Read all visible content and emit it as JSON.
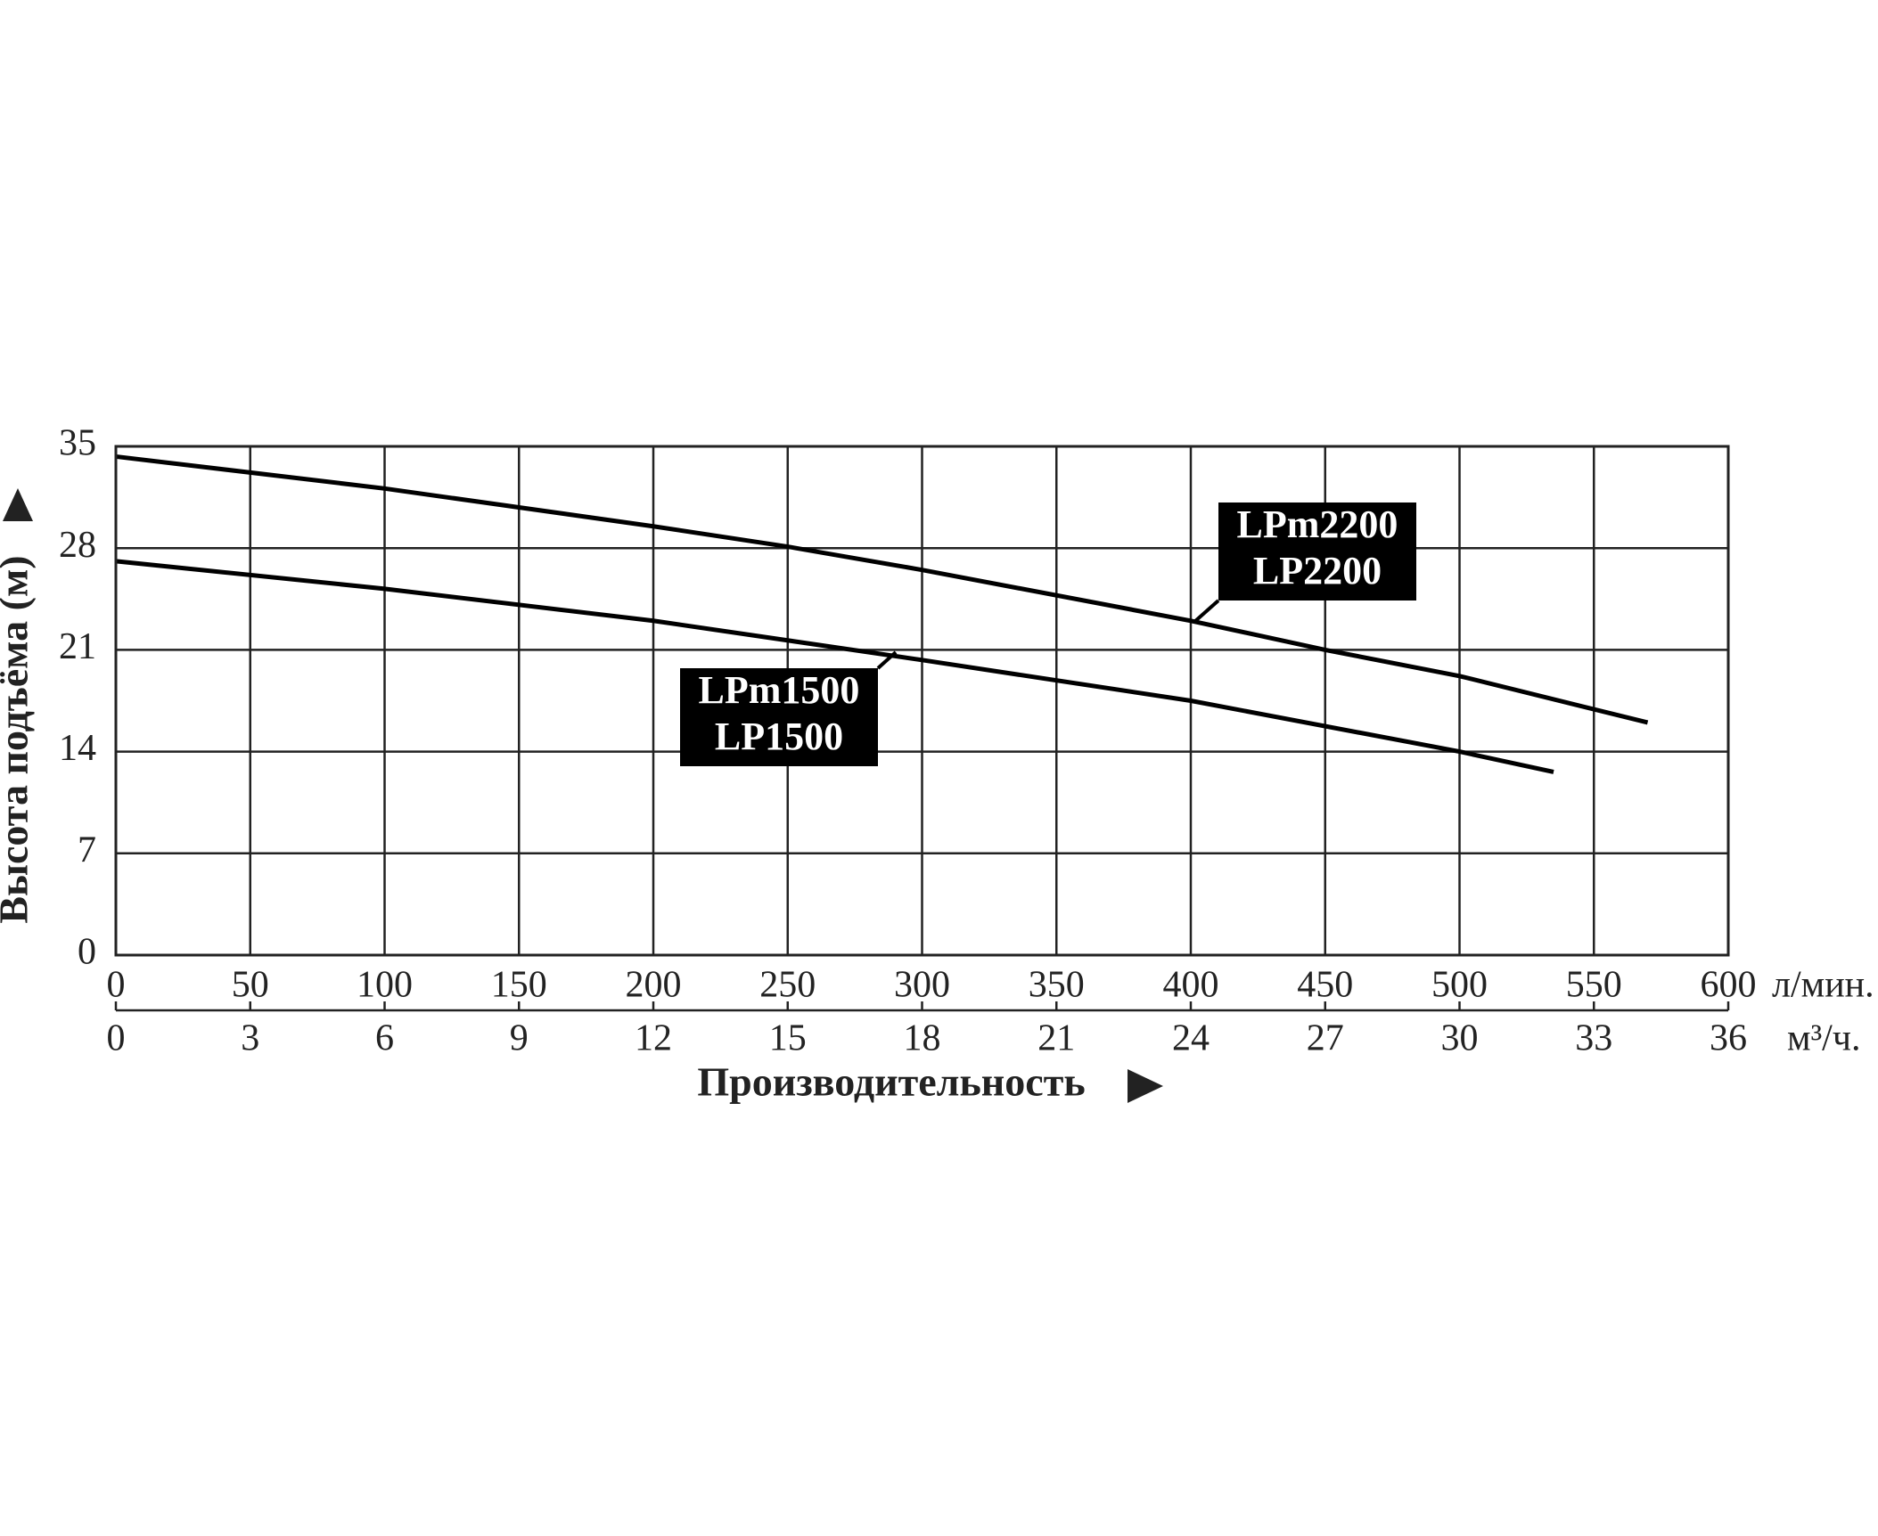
{
  "chart_data": {
    "type": "line",
    "ylabel": "Высота подъёма (м)",
    "xlabel": "Производительность",
    "xunit": "л/мин.",
    "x2unit": "м³/ч.",
    "xlim": [
      0,
      600
    ],
    "xticks": [
      0,
      50,
      100,
      150,
      200,
      250,
      300,
      350,
      400,
      450,
      500,
      550,
      600
    ],
    "x2lim": [
      0,
      36
    ],
    "x2ticks": [
      0,
      3,
      6,
      9,
      12,
      15,
      18,
      21,
      24,
      27,
      30,
      33,
      36
    ],
    "ylim": [
      0,
      35
    ],
    "yticks": [
      0,
      7,
      14,
      21,
      28,
      35
    ],
    "grid": true,
    "series": [
      {
        "labels": [
          "LPm2200",
          "LP2200"
        ],
        "color": "#000000",
        "x": [
          0,
          100,
          200,
          250,
          300,
          400,
          450,
          500,
          570
        ],
        "values": [
          34.3,
          32.1,
          29.5,
          28.1,
          26.5,
          23,
          21,
          19.2,
          16
        ]
      },
      {
        "labels": [
          "LPm1500",
          "LP1500"
        ],
        "color": "#000000",
        "x": [
          0,
          100,
          200,
          300,
          400,
          500,
          535
        ],
        "values": [
          27.1,
          25.2,
          23.0,
          20.3,
          17.5,
          14.0,
          12.6
        ]
      }
    ]
  }
}
